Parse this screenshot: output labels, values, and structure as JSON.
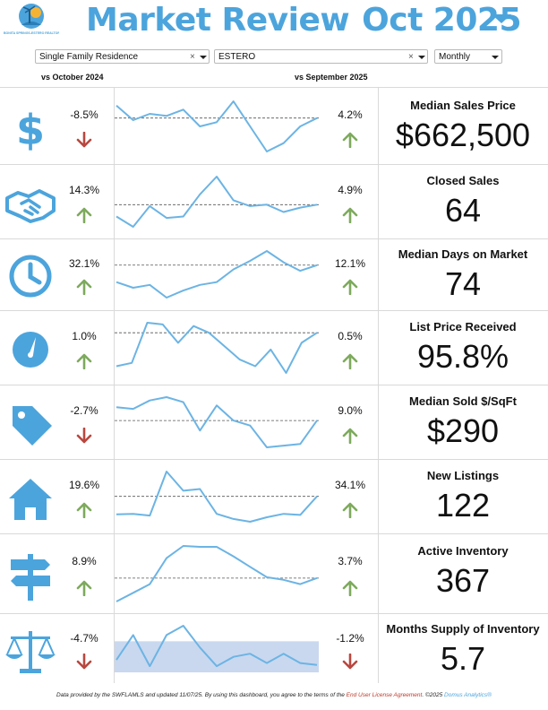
{
  "header": {
    "logo_text": "BONITA SPRINGS-ESTERO REALTORS",
    "title": "Market Review",
    "month": "Oct 2025",
    "menu_icon": "caret-down-icon"
  },
  "filters": {
    "property_type": "Single Family Residence",
    "area": "ESTERO",
    "period": "Monthly",
    "clear_glyph": "×"
  },
  "columns": {
    "yoy": "vs October 2024",
    "mom": "vs September 2025"
  },
  "colors": {
    "accent": "#4ca4dc",
    "up": "#7daa5c",
    "down": "#b9473f",
    "band": "#c9d8ef"
  },
  "metrics": [
    {
      "label": "Median Sales Price",
      "value": "$662,500",
      "yoy": "-8.5%",
      "yoy_dir": "down",
      "mom": "4.2%",
      "mom_dir": "up",
      "icon": "dollar-icon",
      "trend": [
        62,
        55,
        58,
        57,
        60,
        52,
        54,
        64,
        52,
        40,
        44,
        52,
        56
      ]
    },
    {
      "label": "Closed Sales",
      "value": "64",
      "yoy": "14.3%",
      "yoy_dir": "up",
      "mom": "4.9%",
      "mom_dir": "up",
      "icon": "handshake-icon",
      "trend": [
        55,
        48,
        62,
        54,
        55,
        70,
        82,
        66,
        62,
        63,
        58,
        61,
        63
      ]
    },
    {
      "label": "Median Days on Market",
      "value": "74",
      "yoy": "32.1%",
      "yoy_dir": "up",
      "mom": "12.1%",
      "mom_dir": "up",
      "icon": "clock-icon",
      "trend": [
        48,
        44,
        46,
        37,
        42,
        46,
        48,
        57,
        63,
        70,
        62,
        56,
        60
      ]
    },
    {
      "label": "List Price Received",
      "value": "95.8%",
      "yoy": "1.0%",
      "yoy_dir": "up",
      "mom": "0.5%",
      "mom_dir": "up",
      "icon": "gauge-icon",
      "trend": [
        94.6,
        94.7,
        95.9,
        95.85,
        95.3,
        95.8,
        95.6,
        95.2,
        94.8,
        94.6,
        95.1,
        94.4,
        95.3,
        95.6
      ]
    },
    {
      "label": "Median Sold $/SqFt",
      "value": "$290",
      "yoy": "-2.7%",
      "yoy_dir": "down",
      "mom": "9.0%",
      "mom_dir": "up",
      "icon": "price-tag-icon",
      "trend": [
        297,
        296,
        301,
        303,
        300,
        283,
        298,
        289,
        286,
        273,
        274,
        275,
        289
      ]
    },
    {
      "label": "New Listings",
      "value": "122",
      "yoy": "19.6%",
      "yoy_dir": "up",
      "mom": "34.1%",
      "mom_dir": "up",
      "icon": "house-icon",
      "trend": [
        88,
        89,
        86,
        164,
        130,
        133,
        89,
        80,
        75,
        83,
        89,
        87,
        120
      ]
    },
    {
      "label": "Active Inventory",
      "value": "367",
      "yoy": "8.9%",
      "yoy_dir": "up",
      "mom": "3.7%",
      "mom_dir": "up",
      "icon": "signpost-icon",
      "trend": [
        340,
        350,
        360,
        390,
        404,
        403,
        403,
        392,
        380,
        368,
        365,
        360,
        367
      ]
    },
    {
      "label": "Months Supply of Inventory",
      "value": "5.7",
      "yoy": "-4.7%",
      "yoy_dir": "down",
      "mom": "-1.2%",
      "mom_dir": "down",
      "icon": "balance-scale-icon",
      "trend": [
        5.8,
        6.2,
        5.7,
        6.2,
        6.35,
        6.0,
        5.7,
        5.85,
        5.9,
        5.75,
        5.9,
        5.75,
        5.72
      ],
      "band": [
        5.6,
        6.1
      ]
    }
  ],
  "footer": {
    "text1": "Data provided by the SWFLAMLS and updated 11/07/25.  By using this dashboard, you agree to the terms of the ",
    "link": "End User License Agreement",
    "text2": ".  ©2025 ",
    "brand": "Domus Analytics®"
  }
}
